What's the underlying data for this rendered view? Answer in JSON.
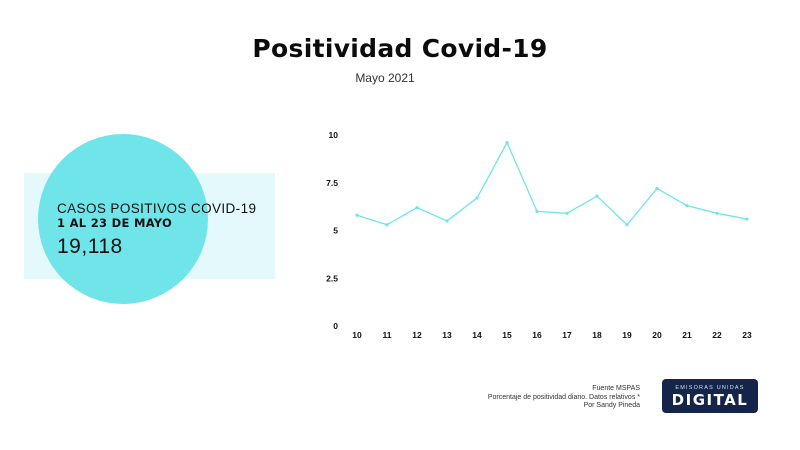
{
  "header": {
    "title": "Positividad Covid-19",
    "subtitle": "Mayo 2021"
  },
  "highlight": {
    "label": "CASOS POSITIVOS COVID-19",
    "range": "1 AL 23 DE MAYO",
    "total": "19,118",
    "circle_color": "#6fe5ea",
    "box_color": "#e3f9fb"
  },
  "chart_data": {
    "type": "line",
    "x": [
      10,
      11,
      12,
      13,
      14,
      15,
      16,
      17,
      18,
      19,
      20,
      21,
      22,
      23
    ],
    "series": [
      {
        "values": [
          5.8,
          5.3,
          6.2,
          5.5,
          6.7,
          9.6,
          6.0,
          5.9,
          6.8,
          5.3,
          7.2,
          6.3,
          5.9,
          5.6
        ],
        "color": "#6fe5ea"
      }
    ],
    "yticks": [
      "0",
      "2.5",
      "5",
      "7.5",
      "10"
    ],
    "ylim": [
      0,
      10
    ],
    "grid": false
  },
  "footer": {
    "source": "Fuente MSPAS",
    "note": "Porcentaje de positividad diario. Datos relativos *",
    "author": "Por Sandy Pineda"
  },
  "logo": {
    "top": "EMISORAS UNIDAS",
    "main": "DIGITAL"
  }
}
